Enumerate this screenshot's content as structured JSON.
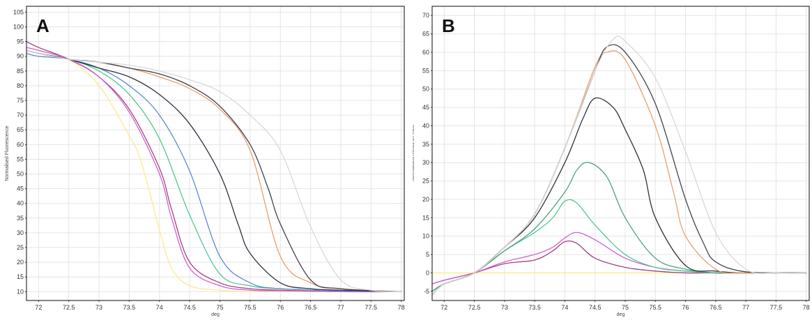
{
  "chart_data": [
    {
      "type": "line",
      "panel_label": "A",
      "xlabel": "deg",
      "ylabel": "Normalised Fluorescence",
      "xlim": [
        71.8,
        78.05
      ],
      "ylim": [
        7,
        107
      ],
      "xticks": [
        72,
        72.5,
        73,
        73.5,
        74,
        74.5,
        75,
        75.5,
        76,
        76.5,
        77,
        77.5,
        78
      ],
      "xtick_labels": [
        "72",
        "72.5",
        "73",
        "73.5",
        "74",
        "74.5",
        "75",
        "75.5",
        "76",
        "76.5",
        "77",
        "77.5",
        "78"
      ],
      "yticks": [
        10,
        15,
        20,
        25,
        30,
        35,
        40,
        45,
        50,
        55,
        60,
        65,
        70,
        75,
        80,
        85,
        90,
        95,
        100,
        105
      ],
      "grid": true,
      "series": [
        {
          "color": "#ffe98a",
          "x": [
            71.8,
            72,
            72.5,
            73,
            73.5,
            73.7,
            74,
            74.2,
            74.5,
            75,
            75.5,
            76,
            77,
            78
          ],
          "y": [
            93,
            92,
            89,
            80,
            63,
            54,
            31,
            18,
            12,
            10.5,
            10,
            10,
            10,
            10
          ]
        },
        {
          "color": "#a04080",
          "x": [
            71.8,
            72,
            72.5,
            73,
            73.5,
            74,
            74.2,
            74.5,
            75,
            75.5,
            76,
            77,
            78
          ],
          "y": [
            95,
            93,
            89,
            83,
            72,
            52,
            38,
            20,
            13,
            11,
            10.5,
            10,
            10
          ]
        },
        {
          "color": "#d060d0",
          "x": [
            71.8,
            72,
            72.5,
            73,
            73.5,
            74,
            74.2,
            74.5,
            75,
            75.5,
            76,
            77,
            78
          ],
          "y": [
            93,
            92,
            89,
            83,
            71,
            50,
            35,
            18,
            12,
            10.5,
            10.3,
            10,
            10
          ]
        },
        {
          "color": "#50c890",
          "x": [
            71.8,
            72,
            72.5,
            73,
            73.5,
            74,
            74.5,
            75,
            75.5,
            76,
            77,
            78
          ],
          "y": [
            92,
            91,
            89,
            85,
            77,
            62,
            36,
            16,
            12,
            11,
            10.3,
            10
          ]
        },
        {
          "color": "#6088d0",
          "x": [
            71.8,
            72,
            72.5,
            73,
            73.5,
            74,
            74.5,
            75,
            75.5,
            76,
            77,
            78
          ],
          "y": [
            91,
            90,
            89,
            86,
            80,
            70,
            51,
            22,
            13,
            11,
            10.3,
            10
          ]
        },
        {
          "color": "#303040",
          "x": [
            71.8,
            72,
            72.5,
            73,
            73.5,
            74,
            74.5,
            75,
            75.3,
            75.5,
            76,
            76.5,
            77,
            78
          ],
          "y": [
            92,
            91,
            89,
            86,
            83,
            77,
            67,
            50,
            33,
            23,
            13,
            11,
            10.5,
            10
          ]
        },
        {
          "color": "#e8a070",
          "x": [
            71.8,
            72,
            72.5,
            73,
            73.5,
            74,
            74.5,
            75,
            75.5,
            76,
            76.5,
            77,
            78
          ],
          "y": [
            92,
            91,
            89,
            88,
            86,
            83,
            79,
            72,
            58,
            22,
            13,
            11,
            10
          ]
        },
        {
          "color": "#404050",
          "x": [
            71.8,
            72,
            72.5,
            73,
            73.5,
            74,
            74.5,
            75,
            75.5,
            75.8,
            76,
            76.5,
            77,
            78
          ],
          "y": [
            92,
            91,
            89,
            88,
            86,
            84,
            80,
            73,
            60,
            45,
            33,
            14,
            11,
            10
          ]
        },
        {
          "color": "#d8d8d8",
          "x": [
            71.8,
            72,
            72.5,
            73,
            73.5,
            74,
            74.5,
            75,
            75.5,
            76,
            76.5,
            77,
            77.5,
            78
          ],
          "y": [
            92,
            91,
            89,
            88,
            87,
            85,
            82,
            78,
            70,
            58,
            32,
            14,
            10.5,
            10
          ]
        }
      ]
    },
    {
      "type": "line",
      "panel_label": "B",
      "xlabel": "deg",
      "ylabel": "Normalised minus on melt",
      "xlim": [
        71.8,
        78.05
      ],
      "ylim": [
        -7.5,
        72.5
      ],
      "xticks": [
        72,
        72.5,
        73,
        73.5,
        74,
        74.5,
        75,
        75.5,
        76,
        76.5,
        77,
        77.5,
        78
      ],
      "xtick_labels": [
        "72",
        "72.5",
        "73",
        "73.5",
        "74",
        "74.5",
        "75",
        "75.5",
        "76",
        "76.5",
        "77",
        "77.5",
        "78"
      ],
      "yticks": [
        -5,
        0,
        5,
        10,
        15,
        20,
        25,
        30,
        35,
        40,
        45,
        50,
        55,
        60,
        65,
        70
      ],
      "grid": true,
      "series": [
        {
          "color": "#ffe98a",
          "x": [
            71.8,
            72.5,
            73,
            74,
            75,
            76,
            77,
            78
          ],
          "y": [
            0,
            0,
            0,
            0,
            0,
            0,
            0,
            0
          ]
        },
        {
          "color": "#a04080",
          "x": [
            71.8,
            72,
            72.5,
            73,
            73.5,
            73.8,
            74,
            74.2,
            74.5,
            75,
            75.5,
            76,
            76.5,
            77,
            78
          ],
          "y": [
            -3,
            -2,
            0,
            2.5,
            3.5,
            6,
            8.5,
            8,
            4,
            1.5,
            0.5,
            0,
            0,
            0,
            0
          ]
        },
        {
          "color": "#d060d0",
          "x": [
            71.8,
            72,
            72.5,
            73,
            73.5,
            73.8,
            74,
            74.2,
            74.5,
            75,
            75.5,
            76,
            76.5,
            77,
            78
          ],
          "y": [
            -3,
            -2,
            0,
            3,
            5,
            7,
            9.5,
            11,
            9,
            4,
            1.5,
            0.5,
            0,
            0,
            0
          ]
        },
        {
          "color": "#50c890",
          "x": [
            71.8,
            72,
            72.5,
            73,
            73.5,
            73.8,
            74,
            74.2,
            74.5,
            75,
            75.5,
            76,
            76.5,
            77,
            78
          ],
          "y": [
            -5,
            -3,
            0,
            6,
            11,
            15,
            19.5,
            19,
            13,
            5,
            1.5,
            0.5,
            0,
            0,
            0
          ]
        },
        {
          "color": "#50a080",
          "x": [
            71.8,
            72,
            72.5,
            73,
            73.5,
            74,
            74.2,
            74.4,
            74.7,
            75,
            75.5,
            76,
            76.5,
            77,
            78
          ],
          "y": [
            -5,
            -3,
            0,
            6,
            12,
            22,
            28,
            30,
            26,
            15,
            4,
            1,
            0,
            0,
            0
          ]
        },
        {
          "color": "#303040",
          "x": [
            71.8,
            72,
            72.5,
            73,
            73.5,
            74,
            74.3,
            74.5,
            74.8,
            75,
            75.3,
            75.5,
            76,
            76.5,
            77,
            78
          ],
          "y": [
            -6,
            -3,
            0,
            7,
            15,
            30,
            42,
            47.5,
            45,
            39,
            28,
            15,
            2,
            0.5,
            0,
            0
          ]
        },
        {
          "color": "#e8a070",
          "x": [
            71.8,
            72,
            72.5,
            73,
            73.5,
            74,
            74.5,
            74.7,
            75,
            75.5,
            75.8,
            76,
            76.5,
            77,
            78
          ],
          "y": [
            -6,
            -3,
            0,
            7,
            16,
            34,
            56,
            60,
            58,
            40,
            22,
            10,
            1,
            0,
            0
          ]
        },
        {
          "color": "#404050",
          "x": [
            71.8,
            72,
            72.5,
            73,
            73.5,
            74,
            74.5,
            74.7,
            75,
            75.5,
            76,
            76.3,
            76.5,
            77,
            78
          ],
          "y": [
            -6,
            -3,
            0,
            7,
            16,
            34,
            55,
            61.5,
            60,
            46,
            20,
            8,
            3,
            0.3,
            0
          ]
        },
        {
          "color": "#d8d8d8",
          "x": [
            71.8,
            72,
            72.5,
            73,
            73.5,
            74,
            74.5,
            74.8,
            75,
            75.5,
            76,
            76.5,
            77,
            77.5,
            78
          ],
          "y": [
            -6,
            -3,
            0,
            7,
            16,
            34,
            55,
            63.5,
            63,
            53,
            33,
            11,
            1,
            0,
            0
          ]
        }
      ]
    }
  ]
}
